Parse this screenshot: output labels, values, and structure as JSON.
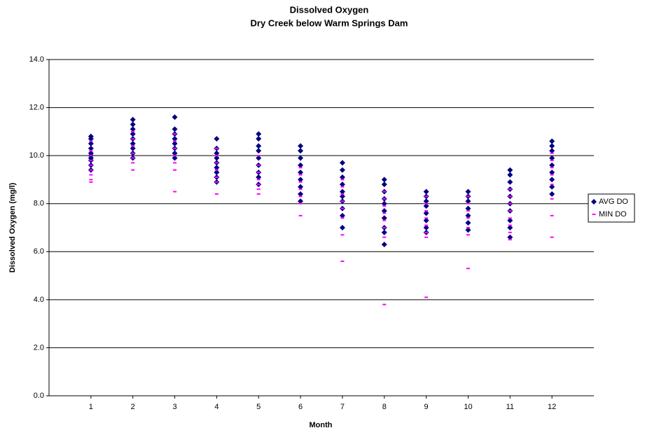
{
  "chart_data": {
    "type": "scatter",
    "title": "Dissolved Oxygen",
    "subtitle": "Dry Creek below Warm Springs Dam",
    "x_label": "Month",
    "y_label": "Dissolved Oxygen (mg/l)",
    "xlim": [
      0,
      13
    ],
    "xticks": [
      1,
      2,
      3,
      4,
      5,
      6,
      7,
      8,
      9,
      10,
      11,
      12
    ],
    "ylim": [
      0,
      14
    ],
    "yticks": [
      {
        "value": 0,
        "label": "0.0"
      },
      {
        "value": 2,
        "label": "2.0"
      },
      {
        "value": 4,
        "label": "4.0"
      },
      {
        "value": 6,
        "label": "6.0"
      },
      {
        "value": 8,
        "label": "8.0"
      },
      {
        "value": 10,
        "label": "10.0"
      },
      {
        "value": 12,
        "label": "12.0"
      },
      {
        "value": 14,
        "label": "14.0"
      }
    ],
    "grid": true,
    "legend": "right",
    "series": [
      {
        "name": "AVG DO",
        "color": "#000080",
        "marker": "diamond",
        "x": [
          1,
          1,
          1,
          1,
          1,
          1,
          1,
          1,
          1,
          1,
          2,
          2,
          2,
          2,
          2,
          2,
          2,
          2,
          2,
          3,
          3,
          3,
          3,
          3,
          3,
          3,
          3,
          4,
          4,
          4,
          4,
          4,
          4,
          4,
          4,
          4,
          5,
          5,
          5,
          5,
          5,
          5,
          5,
          5,
          5,
          6,
          6,
          6,
          6,
          6,
          6,
          6,
          6,
          6,
          7,
          7,
          7,
          7,
          7,
          7,
          7,
          7,
          7,
          7,
          8,
          8,
          8,
          8,
          8,
          8,
          8,
          8,
          8,
          8,
          9,
          9,
          9,
          9,
          9,
          9,
          9,
          9,
          10,
          10,
          10,
          10,
          10,
          10,
          10,
          11,
          11,
          11,
          11,
          11,
          11,
          11,
          11,
          11,
          11,
          12,
          12,
          12,
          12,
          12,
          12,
          12,
          12,
          12
        ],
        "values": [
          10.8,
          10.7,
          10.5,
          10.3,
          10.1,
          10.0,
          9.9,
          9.8,
          9.6,
          9.4,
          11.5,
          11.3,
          11.1,
          10.9,
          10.7,
          10.5,
          10.3,
          10.1,
          9.9,
          11.6,
          11.1,
          10.9,
          10.7,
          10.5,
          10.3,
          10.1,
          9.9,
          10.7,
          10.3,
          10.1,
          9.9,
          9.7,
          9.5,
          9.3,
          9.1,
          8.9,
          10.9,
          10.7,
          10.4,
          10.2,
          9.9,
          9.6,
          9.3,
          9.1,
          8.8,
          10.4,
          10.2,
          9.9,
          9.6,
          9.3,
          9.0,
          8.7,
          8.4,
          8.1,
          9.7,
          9.4,
          9.1,
          8.8,
          8.5,
          8.3,
          8.1,
          7.8,
          7.5,
          7.0,
          9.0,
          8.8,
          8.5,
          8.2,
          8.0,
          7.7,
          7.4,
          7.0,
          6.8,
          6.3,
          8.5,
          8.3,
          8.1,
          7.9,
          7.6,
          7.3,
          7.0,
          6.8,
          8.5,
          8.3,
          8.1,
          7.8,
          7.5,
          7.2,
          6.9,
          9.4,
          9.2,
          8.9,
          8.6,
          8.3,
          8.0,
          7.7,
          7.3,
          7.0,
          6.6,
          10.6,
          10.4,
          10.2,
          9.9,
          9.6,
          9.3,
          9.0,
          8.7,
          8.4
        ]
      },
      {
        "name": "MIN DO",
        "color": "#ff00ff",
        "marker": "dash",
        "x": [
          1,
          1,
          1,
          1,
          1,
          1,
          1,
          1,
          1,
          2,
          2,
          2,
          2,
          2,
          2,
          2,
          3,
          3,
          3,
          3,
          3,
          3,
          3,
          4,
          4,
          4,
          4,
          4,
          4,
          4,
          5,
          5,
          5,
          5,
          5,
          5,
          5,
          6,
          6,
          6,
          6,
          6,
          6,
          6,
          7,
          7,
          7,
          7,
          7,
          7,
          7,
          7,
          8,
          8,
          8,
          8,
          8,
          8,
          8,
          8,
          9,
          9,
          9,
          9,
          9,
          9,
          9,
          9,
          10,
          10,
          10,
          10,
          10,
          10,
          10,
          11,
          11,
          11,
          11,
          11,
          11,
          11,
          11,
          12,
          12,
          12,
          12,
          12,
          12,
          12,
          12
        ],
        "values": [
          10.6,
          10.2,
          10.0,
          9.8,
          9.6,
          9.4,
          9.2,
          9.0,
          8.9,
          11.0,
          10.7,
          10.4,
          10.1,
          9.9,
          9.7,
          9.4,
          10.9,
          10.6,
          10.3,
          10.0,
          9.7,
          9.4,
          8.5,
          10.3,
          10.0,
          9.7,
          9.4,
          9.1,
          8.9,
          8.4,
          10.0,
          9.6,
          9.3,
          9.0,
          8.8,
          8.6,
          8.4,
          9.5,
          9.2,
          8.9,
          8.6,
          8.3,
          8.0,
          7.5,
          9.0,
          8.7,
          8.4,
          8.1,
          7.8,
          7.4,
          6.7,
          5.6,
          8.5,
          8.2,
          7.9,
          7.6,
          7.3,
          7.0,
          6.6,
          3.8,
          8.3,
          8.0,
          7.7,
          7.4,
          7.1,
          6.8,
          6.6,
          4.1,
          8.3,
          8.0,
          7.7,
          7.4,
          7.0,
          6.7,
          5.3,
          8.6,
          8.3,
          8.0,
          7.7,
          7.4,
          7.1,
          6.8,
          6.5,
          10.1,
          9.8,
          9.5,
          9.2,
          8.8,
          8.2,
          7.5,
          6.6
        ]
      }
    ]
  }
}
